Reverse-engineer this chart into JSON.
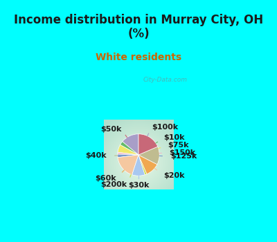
{
  "title": "Income distribution in Murray City, OH\n(%)",
  "subtitle": "White residents",
  "title_color": "#1a1a1a",
  "subtitle_color": "#cc6600",
  "bg_cyan": "#00ffff",
  "labels": [
    "$100k",
    "$10k",
    "$75k",
    "$150k",
    "$125k",
    "$20k",
    "$30k",
    "$200k",
    "$60k",
    "$40k",
    "$50k"
  ],
  "sizes": [
    14.0,
    3.0,
    6.0,
    1.5,
    2.5,
    18.0,
    10.0,
    1.5,
    11.0,
    14.0,
    18.5
  ],
  "colors": [
    "#a89ec8",
    "#66bb6a",
    "#f0e868",
    "#f0b8c8",
    "#7799cc",
    "#f5c8a0",
    "#a8c8f0",
    "#ccdd44",
    "#f0a850",
    "#c0bc90",
    "#c86878"
  ],
  "line_colors": [
    "#a89ec8",
    "#66bb6a",
    "#f0e868",
    "#f0b8c8",
    "#7799cc",
    "#f5c8a0",
    "#a8c8f0",
    "#ccdd44",
    "#f0a850",
    "#c0bc90",
    "#c86878"
  ],
  "startangle": 90,
  "label_fontsize": 8
}
